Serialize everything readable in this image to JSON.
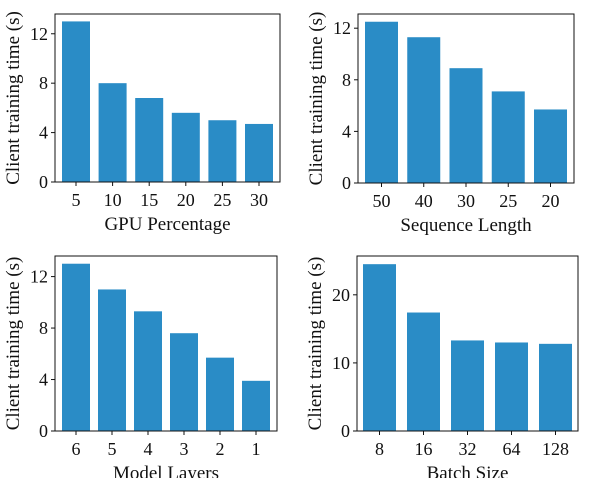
{
  "chart_data": [
    {
      "type": "bar",
      "categories": [
        "5",
        "10",
        "15",
        "20",
        "25",
        "30"
      ],
      "values": [
        13.0,
        8.0,
        6.8,
        5.6,
        5.0,
        4.7
      ],
      "xlabel": "GPU Percentage",
      "ylabel": "Client training time (s)",
      "ylim": [
        0,
        13.6
      ],
      "yticks": [
        0,
        4,
        8,
        12
      ],
      "grid": false,
      "color": "#2a8cc6"
    },
    {
      "type": "bar",
      "categories": [
        "50",
        "40",
        "30",
        "25",
        "20"
      ],
      "values": [
        12.5,
        11.3,
        8.9,
        7.1,
        5.7
      ],
      "xlabel": "Sequence Length",
      "ylabel": "Client training time (s)",
      "ylim": [
        0,
        13.1
      ],
      "yticks": [
        0,
        4,
        8,
        12
      ],
      "grid": false,
      "color": "#2a8cc6"
    },
    {
      "type": "bar",
      "categories": [
        "6",
        "5",
        "4",
        "3",
        "2",
        "1"
      ],
      "values": [
        13.0,
        11.0,
        9.3,
        7.6,
        5.7,
        3.9
      ],
      "xlabel": "Model Layers",
      "ylabel": "Client training time (s)",
      "ylim": [
        0,
        13.6
      ],
      "yticks": [
        0,
        4,
        8,
        12
      ],
      "grid": false,
      "color": "#2a8cc6"
    },
    {
      "type": "bar",
      "categories": [
        "8",
        "16",
        "32",
        "64",
        "128"
      ],
      "values": [
        24.5,
        17.4,
        13.3,
        13.0,
        12.8
      ],
      "xlabel": "Batch Size",
      "ylabel": "Client training time (s)",
      "ylim": [
        0,
        25.7
      ],
      "yticks": [
        0,
        10,
        20
      ],
      "grid": false,
      "color": "#2a8cc6"
    }
  ]
}
